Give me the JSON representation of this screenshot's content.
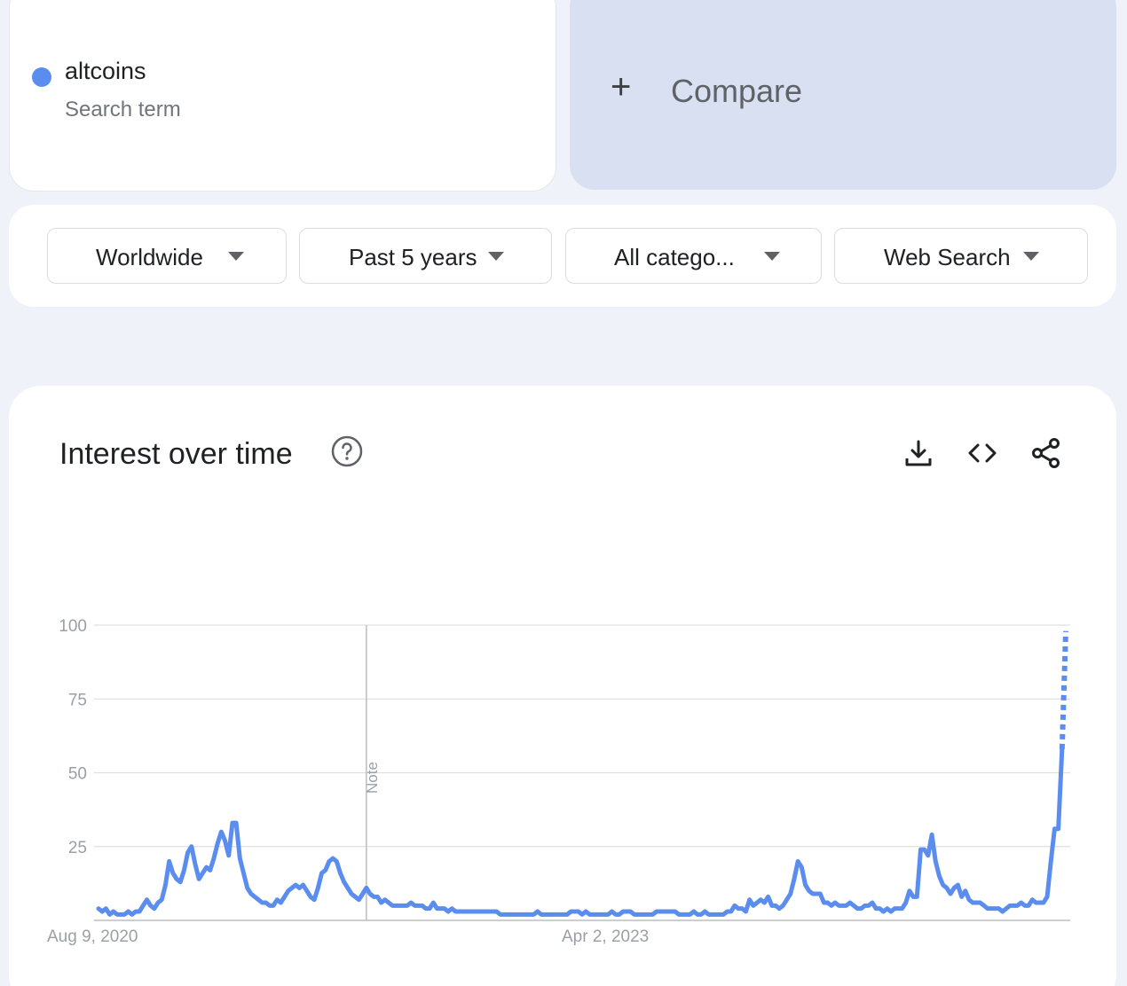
{
  "term": {
    "name": "altcoins",
    "subtitle": "Search term",
    "color": "#5b8def"
  },
  "compare": {
    "label": "Compare",
    "icon": "plus-icon"
  },
  "filters": [
    {
      "label": "Worldwide"
    },
    {
      "label": "Past 5 years"
    },
    {
      "label": "All catego..."
    },
    {
      "label": "Web Search"
    }
  ],
  "panel": {
    "title": "Interest over time",
    "help_icon": "help-icon",
    "tools": [
      "download-icon",
      "embed-code-icon",
      "share-icon"
    ]
  },
  "chart_data": {
    "type": "line",
    "title": "",
    "xlabel": "",
    "ylabel": "",
    "ylim": [
      0,
      100
    ],
    "y_ticks": [
      "100",
      "75",
      "50",
      "25"
    ],
    "x_tick_labels": [
      "Aug 9, 2020",
      "Apr 2, 2023"
    ],
    "annotations": [
      {
        "label": "Note",
        "x_index": 72
      }
    ],
    "grid": true,
    "series": [
      {
        "color": "#5b8def",
        "partial_last_point": true,
        "values": [
          4,
          3,
          4,
          2,
          3,
          2,
          2,
          2,
          3,
          2,
          3,
          3,
          5,
          7,
          5,
          4,
          6,
          7,
          12,
          20,
          16,
          14,
          13,
          17,
          23,
          25,
          19,
          14,
          16,
          18,
          17,
          21,
          26,
          30,
          27,
          22,
          33,
          33,
          21,
          16,
          11,
          9,
          8,
          7,
          6,
          6,
          5,
          5,
          7,
          6,
          8,
          10,
          11,
          12,
          11,
          12,
          10,
          8,
          7,
          11,
          16,
          17,
          20,
          21,
          20,
          16,
          13,
          11,
          9,
          8,
          7,
          9,
          11,
          9,
          8,
          8,
          6,
          7,
          6,
          5,
          5,
          5,
          5,
          5,
          6,
          5,
          5,
          5,
          4,
          4,
          6,
          4,
          4,
          4,
          3,
          4,
          3,
          3,
          3,
          3,
          3,
          3,
          3,
          3,
          3,
          3,
          3,
          3,
          2,
          2,
          2,
          2,
          2,
          2,
          2,
          2,
          2,
          2,
          3,
          2,
          2,
          2,
          2,
          2,
          2,
          2,
          2,
          3,
          3,
          3,
          2,
          3,
          2,
          2,
          2,
          2,
          2,
          2,
          3,
          2,
          2,
          3,
          3,
          3,
          2,
          2,
          2,
          2,
          2,
          2,
          3,
          3,
          3,
          3,
          3,
          3,
          2,
          2,
          2,
          2,
          3,
          2,
          2,
          3,
          2,
          2,
          2,
          2,
          2,
          3,
          3,
          5,
          4,
          4,
          3,
          7,
          5,
          6,
          7,
          6,
          8,
          5,
          5,
          4,
          5,
          7,
          9,
          14,
          20,
          18,
          12,
          10,
          9,
          9,
          9,
          6,
          6,
          5,
          6,
          5,
          5,
          5,
          6,
          5,
          4,
          4,
          5,
          5,
          6,
          4,
          4,
          3,
          4,
          3,
          4,
          4,
          4,
          6,
          10,
          8,
          8,
          24,
          24,
          22,
          29,
          20,
          15,
          12,
          11,
          9,
          11,
          12,
          8,
          10,
          7,
          6,
          6,
          6,
          5,
          4,
          4,
          4,
          4,
          3,
          4,
          5,
          5,
          5,
          6,
          5,
          5,
          7,
          6,
          6,
          6,
          8,
          20,
          31,
          31,
          58,
          98
        ]
      }
    ]
  }
}
